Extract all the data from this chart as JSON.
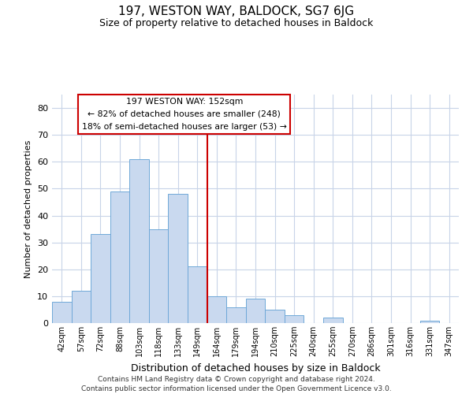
{
  "title": "197, WESTON WAY, BALDOCK, SG7 6JG",
  "subtitle": "Size of property relative to detached houses in Baldock",
  "xlabel": "Distribution of detached houses by size in Baldock",
  "ylabel": "Number of detached properties",
  "footnote1": "Contains HM Land Registry data © Crown copyright and database right 2024.",
  "footnote2": "Contains public sector information licensed under the Open Government Licence v3.0.",
  "bar_labels": [
    "42sqm",
    "57sqm",
    "72sqm",
    "88sqm",
    "103sqm",
    "118sqm",
    "133sqm",
    "149sqm",
    "164sqm",
    "179sqm",
    "194sqm",
    "210sqm",
    "225sqm",
    "240sqm",
    "255sqm",
    "270sqm",
    "286sqm",
    "301sqm",
    "316sqm",
    "331sqm",
    "347sqm"
  ],
  "bar_values": [
    8,
    12,
    33,
    49,
    61,
    35,
    48,
    21,
    10,
    6,
    9,
    5,
    3,
    0,
    2,
    0,
    0,
    0,
    0,
    1,
    0
  ],
  "bar_color": "#c9d9ef",
  "bar_edge_color": "#6fa8d8",
  "vline_x": 7.5,
  "vline_color": "#cc0000",
  "annotation_title": "197 WESTON WAY: 152sqm",
  "annotation_line1": "← 82% of detached houses are smaller (248)",
  "annotation_line2": "18% of semi-detached houses are larger (53) →",
  "annotation_box_color": "#ffffff",
  "annotation_box_edge": "#cc0000",
  "ylim": [
    0,
    85
  ],
  "yticks": [
    0,
    10,
    20,
    30,
    40,
    50,
    60,
    70,
    80
  ],
  "background_color": "#ffffff",
  "grid_color": "#c8d4e8"
}
